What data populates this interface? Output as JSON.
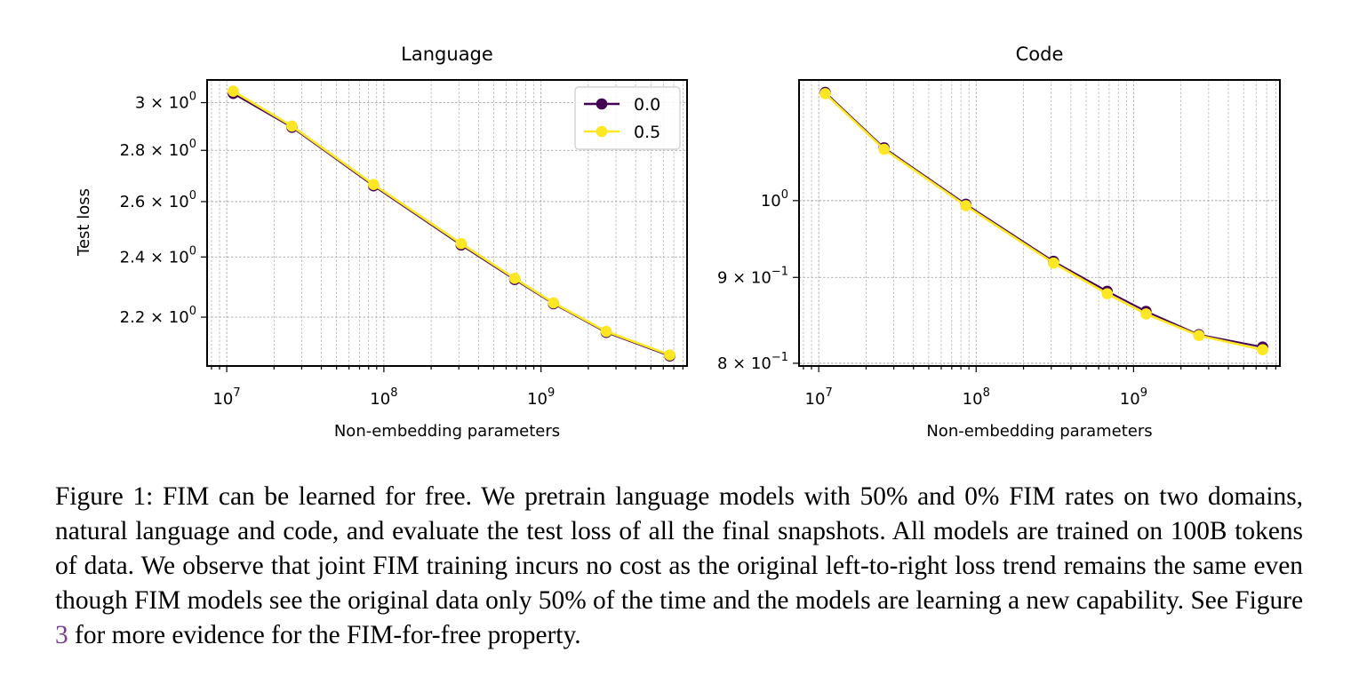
{
  "chart_data": [
    {
      "type": "line",
      "title": "Language",
      "xlabel": "Non-embedding parameters",
      "ylabel": "Test loss",
      "xscale": "log",
      "yscale": "log",
      "xlim": [
        7500000.0,
        8500000000.0
      ],
      "ylim": [
        2.05,
        3.1
      ],
      "xticks": [
        {
          "value": 10000000.0,
          "label": "10",
          "exp": "7"
        },
        {
          "value": 100000000.0,
          "label": "10",
          "exp": "8"
        },
        {
          "value": 1000000000.0,
          "label": "10",
          "exp": "9"
        }
      ],
      "yticks": [
        {
          "value": 2.2,
          "label": "2.2 × 10",
          "exp": "0"
        },
        {
          "value": 2.4,
          "label": "2.4 × 10",
          "exp": "0"
        },
        {
          "value": 2.6,
          "label": "2.6 × 10",
          "exp": "0"
        },
        {
          "value": 2.8,
          "label": "2.8 × 10",
          "exp": "0"
        },
        {
          "value": 3.0,
          "label": "3 × 10",
          "exp": "0"
        }
      ],
      "grid": true,
      "legend": "top-right",
      "series": [
        {
          "name": "0.0",
          "color": "#440154",
          "x": [
            11000000.0,
            26000000.0,
            86000000.0,
            310000000.0,
            680000000.0,
            1200000000.0,
            2600000000.0,
            6600000000.0
          ],
          "y": [
            3.04,
            2.895,
            2.66,
            2.442,
            2.323,
            2.243,
            2.152,
            2.08
          ]
        },
        {
          "name": "0.5",
          "color": "#fde725",
          "x": [
            11000000.0,
            26000000.0,
            86000000.0,
            310000000.0,
            680000000.0,
            1200000000.0,
            2600000000.0,
            6600000000.0
          ],
          "y": [
            3.05,
            2.9,
            2.665,
            2.447,
            2.327,
            2.246,
            2.155,
            2.083
          ]
        }
      ]
    },
    {
      "type": "line",
      "title": "Code",
      "xlabel": "Non-embedding parameters",
      "ylabel": "",
      "xscale": "log",
      "yscale": "log",
      "xlim": [
        7500000.0,
        8500000000.0
      ],
      "ylim": [
        0.797,
        1.18
      ],
      "xticks": [
        {
          "value": 10000000.0,
          "label": "10",
          "exp": "7"
        },
        {
          "value": 100000000.0,
          "label": "10",
          "exp": "8"
        },
        {
          "value": 1000000000.0,
          "label": "10",
          "exp": "9"
        }
      ],
      "yticks": [
        {
          "value": 0.8,
          "label": "8 × 10",
          "exp": "−1"
        },
        {
          "value": 0.9,
          "label": "9 × 10",
          "exp": "−1"
        },
        {
          "value": 1.0,
          "label": "10",
          "exp": "0"
        }
      ],
      "grid": true,
      "legend": "none",
      "series": [
        {
          "name": "0.0",
          "color": "#440154",
          "x": [
            11000000.0,
            26000000.0,
            86000000.0,
            310000000.0,
            680000000.0,
            1200000000.0,
            2600000000.0,
            6600000000.0
          ],
          "y": [
            1.16,
            1.075,
            0.995,
            0.92,
            0.883,
            0.859,
            0.832,
            0.818
          ]
        },
        {
          "name": "0.5",
          "color": "#fde725",
          "x": [
            11000000.0,
            26000000.0,
            86000000.0,
            310000000.0,
            680000000.0,
            1200000000.0,
            2600000000.0,
            6600000000.0
          ],
          "y": [
            1.158,
            1.073,
            0.993,
            0.918,
            0.88,
            0.856,
            0.831,
            0.815
          ]
        }
      ]
    }
  ],
  "caption": {
    "prefix": "Figure 1: FIM can be learned for free. We pretrain language models with 50% and 0% FIM rates on two domains, natural language and code, and evaluate the test loss of all the final snapshots. All models are trained on 100B tokens of data. We observe that joint FIM training incurs no cost as the original left-to-right loss trend remains the same even though FIM models see the original data only 50% of the time and the models are learning a new capability. See Figure ",
    "ref": "3",
    "suffix": " for more evidence for the FIM-for-free property."
  }
}
